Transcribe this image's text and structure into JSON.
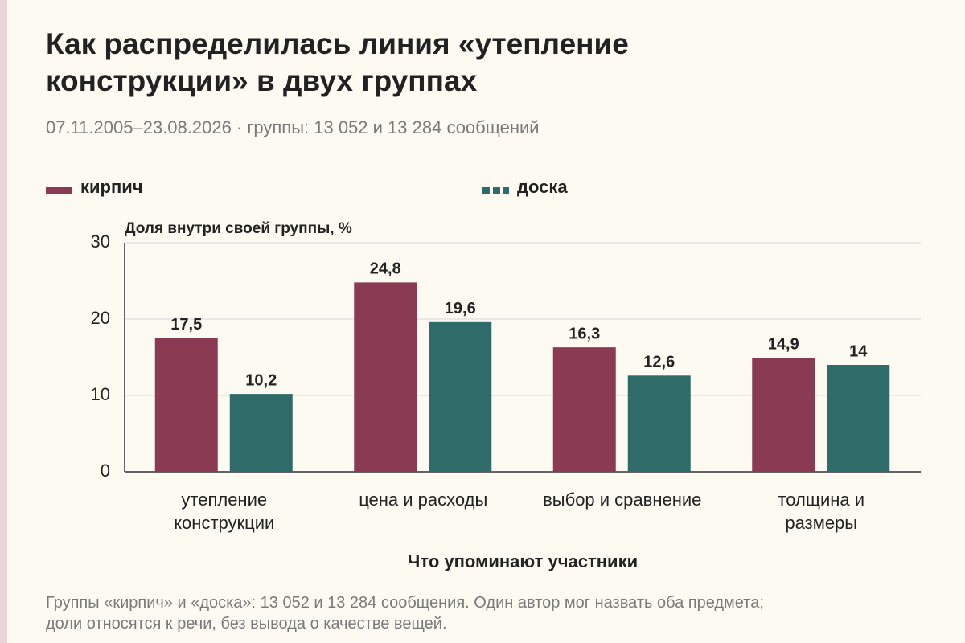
{
  "chart_data": {
    "type": "bar",
    "title": "Как распределилась линия «утепление\nконструкции» в двух группах",
    "subtitle": "07.11.2005–23.08.2026 · группы: 13 052 и 13 284 сообщений",
    "y_label": "Доля внутри своей группы, %",
    "x_label": "Что упоминают участники",
    "footnote": "Группы «кирпич» и «доска»: 13 052 и 13 284 сообщения. Один автор мог назвать оба предмета;\nдоли относятся к речи, без вывода о качестве вещей.",
    "categories": [
      "утепление\nконструкции",
      "цена и расходы",
      "выбор и сравнение",
      "толщина и\nразмеры"
    ],
    "series": [
      {
        "name": "кирпич",
        "color": "#8a3a52",
        "values": [
          17.5,
          24.8,
          16.3,
          14.9
        ],
        "value_labels": [
          "17,5",
          "24,8",
          "16,3",
          "14,9"
        ]
      },
      {
        "name": "доска",
        "color": "#2f6b68",
        "values": [
          10.2,
          19.6,
          12.6,
          14
        ],
        "value_labels": [
          "10,2",
          "19,6",
          "12,6",
          "14"
        ]
      }
    ],
    "ylim": [
      0,
      30
    ],
    "yticks": [
      0,
      10,
      20,
      30
    ],
    "grid": true
  }
}
